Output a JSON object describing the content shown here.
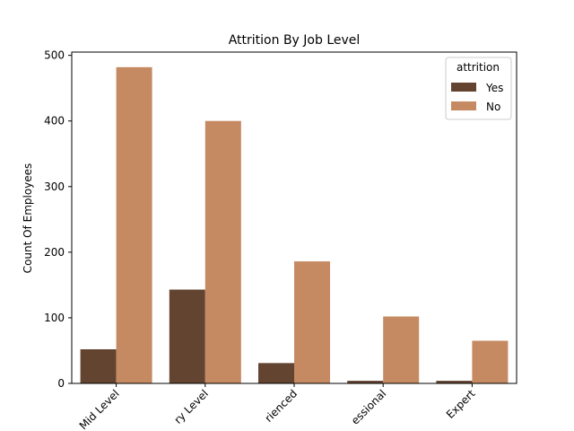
{
  "chart_data": {
    "type": "bar",
    "title": "Attrition By Job Level",
    "xlabel": "",
    "ylabel": "Count Of Employees",
    "categories": [
      "Mid Level",
      "Entry Level",
      "Experienced",
      "Professional",
      "Expert"
    ],
    "visible_tick_text": [
      "Mid Level",
      "ry Level",
      "rienced",
      "essional",
      "Expert"
    ],
    "series": [
      {
        "name": "Yes",
        "values": [
          52,
          143,
          31,
          4,
          4
        ],
        "color": "#634431"
      },
      {
        "name": "No",
        "values": [
          482,
          400,
          186,
          102,
          65
        ],
        "color": "#c58a61"
      }
    ],
    "ylim": [
      0,
      505
    ],
    "yticks": [
      0,
      100,
      200,
      300,
      400,
      500
    ],
    "grid": false,
    "legend": {
      "title": "attrition",
      "position": "top-right"
    }
  }
}
